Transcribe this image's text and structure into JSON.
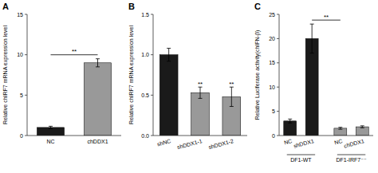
{
  "chart_data": [
    {
      "type": "bar",
      "title": "A",
      "categories": [
        "NC",
        "chDDX1"
      ],
      "values": [
        1.0,
        9.0
      ],
      "errors": [
        0.15,
        0.5
      ],
      "colors": [
        "#1a1a1a",
        "#999999"
      ],
      "ylabel": "Relative chIRF7 mRNA expression level",
      "ylim": [
        0,
        15
      ],
      "yticks": [
        0,
        5,
        10,
        15
      ],
      "grid": false,
      "annotations": [
        {
          "kind": "bracket",
          "text": "**",
          "indices": [
            0,
            1
          ]
        }
      ]
    },
    {
      "type": "bar",
      "title": "B",
      "categories": [
        "shNC",
        "shDDX1-1",
        "shDDX1-2"
      ],
      "values": [
        1.0,
        0.53,
        0.48
      ],
      "errors": [
        0.08,
        0.07,
        0.12
      ],
      "colors": [
        "#1a1a1a",
        "#999999",
        "#999999"
      ],
      "ylabel": "Relative chIRF7 mRNA expression level",
      "ylim": [
        0.0,
        1.5
      ],
      "yticks": [
        {
          "value": 0,
          "label": "0.0"
        },
        0.5,
        {
          "value": 1,
          "label": "1.0"
        },
        1.5
      ],
      "grid": false,
      "annotations": [
        {
          "kind": "above",
          "text": "**",
          "index": 1
        },
        {
          "kind": "above",
          "text": "**",
          "index": 2
        }
      ]
    },
    {
      "type": "bar",
      "title": "C",
      "categories": [
        "NC",
        "shDDX1",
        "NC",
        "chDDX1"
      ],
      "values": [
        3.0,
        20.0,
        1.5,
        1.8
      ],
      "errors": [
        0.4,
        3.0,
        0.2,
        0.2
      ],
      "colors": [
        "#1a1a1a",
        "#1a1a1a",
        "#999999",
        "#999999"
      ],
      "ylabel": "Relative Luciferase activity(chIFN-β)",
      "ylim": [
        0,
        25
      ],
      "yticks": [
        0,
        5,
        10,
        15,
        20,
        25
      ],
      "grid": false,
      "annotations": [
        {
          "kind": "group",
          "text": "DF1-WT",
          "indices": [
            0,
            1
          ]
        },
        {
          "kind": "group",
          "text": "DF1-IRF7⁻⁻",
          "indices": [
            2,
            3
          ]
        },
        {
          "kind": "bracket",
          "text": "**",
          "indices": [
            1,
            2
          ]
        }
      ]
    }
  ]
}
